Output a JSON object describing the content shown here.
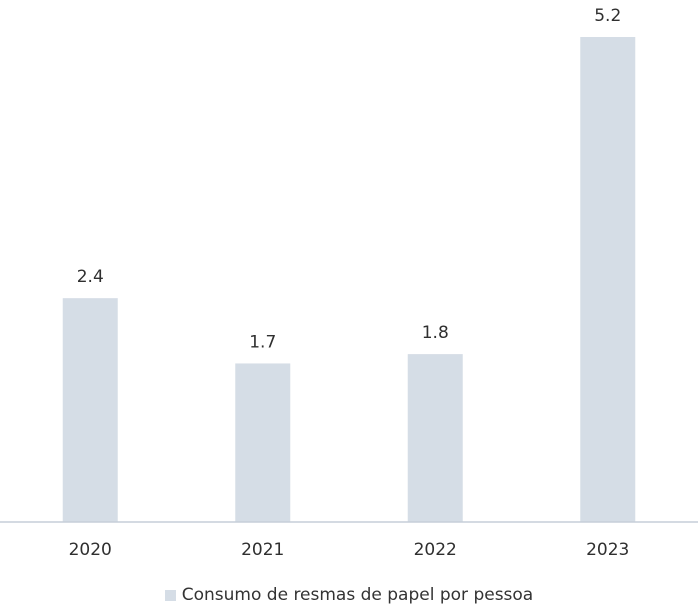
{
  "chart_data": {
    "type": "bar",
    "categories": [
      "2020",
      "2021",
      "2022",
      "2023"
    ],
    "series": [
      {
        "name": "Consumo de resmas de papel por pessoa",
        "values": [
          2.4,
          1.7,
          1.8,
          5.2
        ]
      }
    ],
    "data_labels": [
      "2.4",
      "1.7",
      "1.8",
      "5.2"
    ],
    "title": "",
    "xlabel": "",
    "ylabel": "",
    "ylim": [
      0,
      5.2
    ],
    "grid": false,
    "legend_position": "bottom-center",
    "colors": {
      "bar": "#d5dde6",
      "axis": "#c6ced8",
      "text": "#2f2f2f"
    }
  }
}
